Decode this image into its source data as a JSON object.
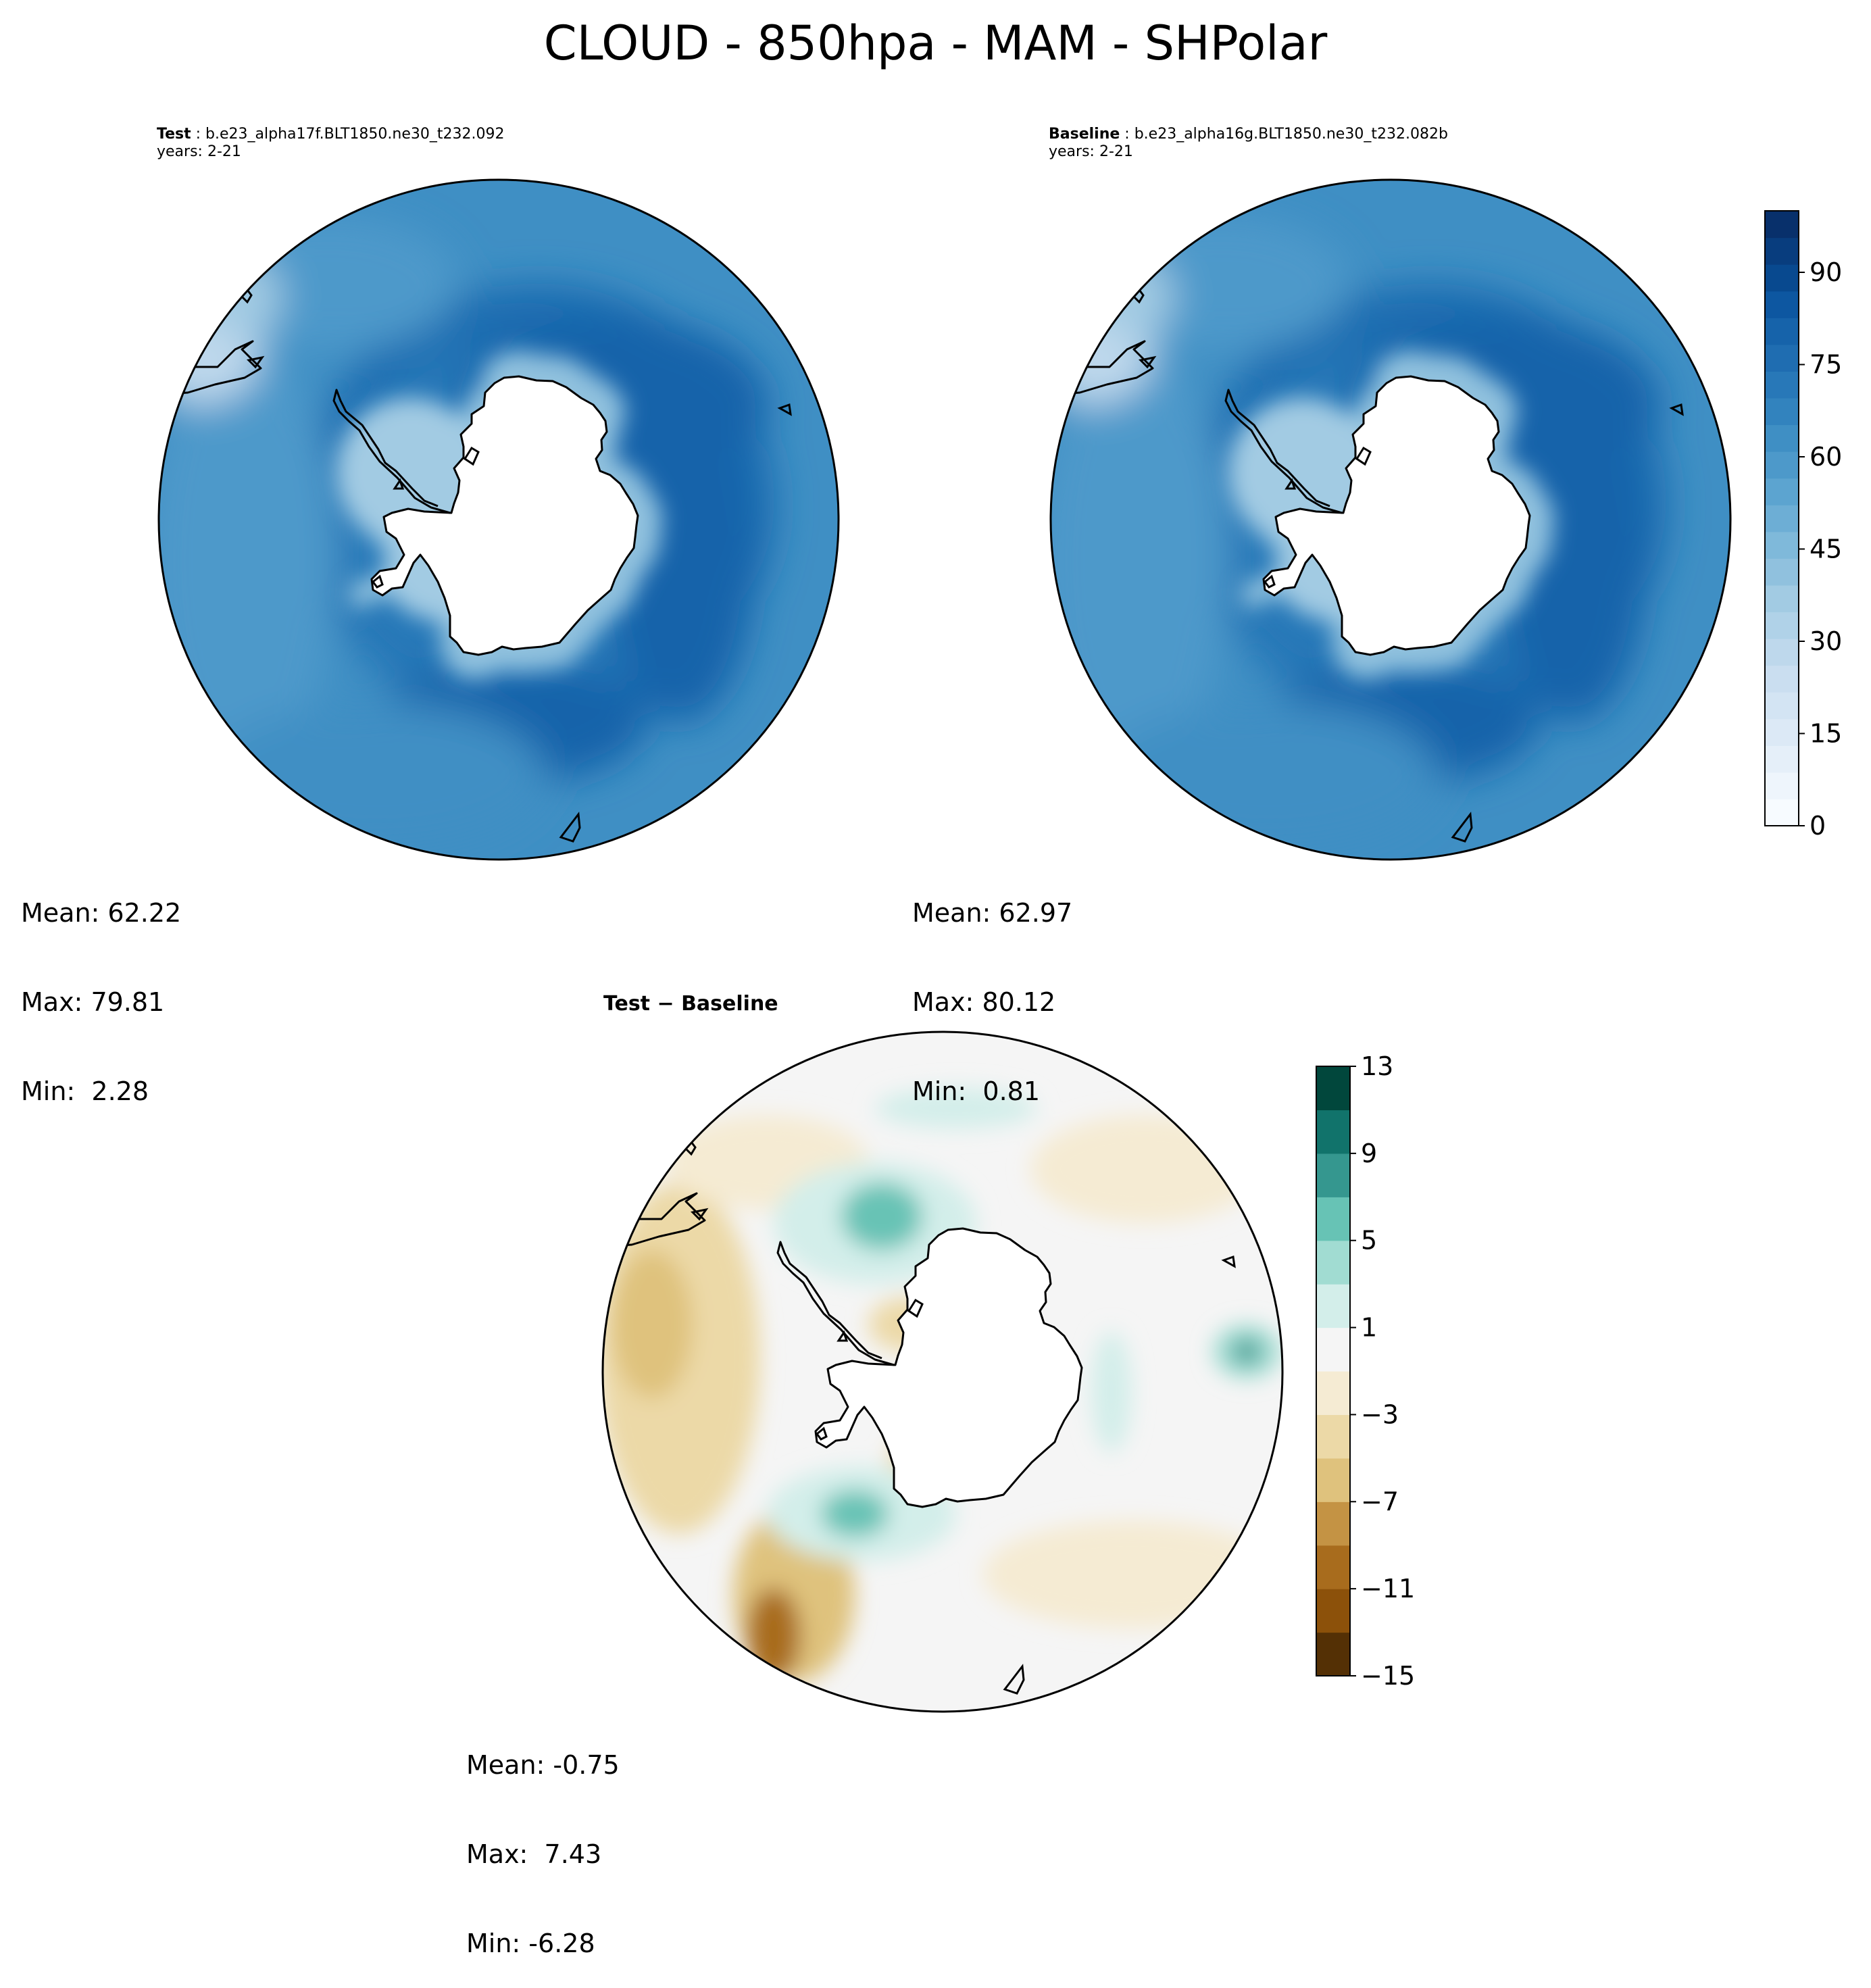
{
  "title": "CLOUD - 850hpa - MAM - SHPolar",
  "panels": [
    {
      "label": "Test",
      "case": "b.e23_alpha17f.BLT1850.ne30_t232.092",
      "years": "years: 2-21",
      "stats": {
        "mean": "Mean: 62.22",
        "max": "Max: 79.81",
        "min": "Min:  2.28"
      }
    },
    {
      "label": "Baseline",
      "case": "b.e23_alpha16g.BLT1850.ne30_t232.082b",
      "years": "years: 2-21",
      "stats": {
        "mean": "Mean: 62.97",
        "max": "Max: 80.12",
        "min": "Min:  0.81"
      }
    }
  ],
  "diff": {
    "title_a": "Test",
    "title_sep": " − ",
    "title_b": "Baseline",
    "stats": {
      "mean": "Mean: -0.75",
      "max": "Max:  7.43",
      "min": "Min: -6.28"
    }
  },
  "colors": {
    "seq": [
      "#f7fbff",
      "#eef5fc",
      "#e5eff9",
      "#dce9f6",
      "#d3e4f3",
      "#cadef0",
      "#bed8ec",
      "#b0d2e8",
      "#a2cbe3",
      "#90c1de",
      "#7fb9da",
      "#6daed5",
      "#5ca4d0",
      "#4d99ca",
      "#3f8fc4",
      "#3283be",
      "#2878b8",
      "#1f6db1",
      "#1663aa",
      "#0d57a1",
      "#08498f",
      "#083d7e",
      "#08306b"
    ],
    "div": [
      "#543005",
      "#8c510a",
      "#a86c1d",
      "#c49344",
      "#dfc27d",
      "#ecd9a7",
      "#f5ebd3",
      "#f5f5f5",
      "#d3eeea",
      "#a1dcd2",
      "#67c3b5",
      "#35978f",
      "#11736b",
      "#01473c"
    ],
    "coast": "#000000"
  },
  "chart_data": [
    {
      "type": "heatmap",
      "projection": "south polar stereographic",
      "title": "Test : b.e23_alpha17f.BLT1850.ne30_t232.092",
      "levels": [
        0,
        100
      ],
      "colorbar_ticks": [
        0,
        15,
        30,
        45,
        60,
        75,
        90
      ],
      "mean": 62.22,
      "max": 79.81,
      "min": 2.28
    },
    {
      "type": "heatmap",
      "projection": "south polar stereographic",
      "title": "Baseline : b.e23_alpha16g.BLT1850.ne30_t232.082b",
      "levels": [
        0,
        100
      ],
      "colorbar_ticks": [
        0,
        15,
        30,
        45,
        60,
        75,
        90
      ],
      "mean": 62.97,
      "max": 80.12,
      "min": 0.81
    },
    {
      "type": "heatmap",
      "projection": "south polar stereographic",
      "title": "Test − Baseline",
      "levels": [
        -15,
        13
      ],
      "colorbar_ticks": [
        -15,
        -11,
        -7,
        -3,
        1,
        5,
        9,
        13
      ],
      "colorbar_tick_labels": [
        "−15",
        "−11",
        "−7",
        "−3",
        "1",
        "5",
        "9",
        "13"
      ],
      "mean": -0.75,
      "max": 7.43,
      "min": -6.28
    }
  ]
}
